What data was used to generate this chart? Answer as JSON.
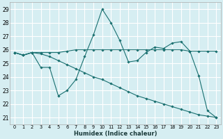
{
  "xlabel": "Humidex (Indice chaleur)",
  "bg_color": "#d6eef2",
  "grid_color": "#ffffff",
  "line_color": "#1a7070",
  "xlim": [
    -0.5,
    23.5
  ],
  "ylim": [
    20.5,
    29.5
  ],
  "yticks": [
    21,
    22,
    23,
    24,
    25,
    26,
    27,
    28,
    29
  ],
  "xticks": [
    0,
    1,
    2,
    3,
    4,
    5,
    6,
    7,
    8,
    9,
    10,
    11,
    12,
    13,
    14,
    15,
    16,
    17,
    18,
    19,
    20,
    21,
    22,
    23
  ],
  "line1_x": [
    0,
    1,
    2,
    3,
    4,
    5,
    6,
    7,
    8,
    9,
    10,
    11,
    12,
    13,
    14,
    15,
    16,
    17,
    18,
    19,
    20,
    21,
    22,
    23
  ],
  "line1_y": [
    25.8,
    25.6,
    25.8,
    25.8,
    25.8,
    25.8,
    25.9,
    26.0,
    26.0,
    26.0,
    26.0,
    26.0,
    26.0,
    26.0,
    26.0,
    26.0,
    26.0,
    26.0,
    26.0,
    26.0,
    25.9,
    25.9,
    25.9,
    25.9
  ],
  "line2_x": [
    0,
    1,
    2,
    3,
    4,
    5,
    6,
    7,
    8,
    9,
    10,
    11,
    12,
    13,
    14,
    15,
    16,
    17,
    18,
    19,
    20,
    21,
    22,
    23
  ],
  "line2_y": [
    25.8,
    25.6,
    25.8,
    24.7,
    24.7,
    22.6,
    23.0,
    23.8,
    25.5,
    27.1,
    29.0,
    28.0,
    26.7,
    25.1,
    25.2,
    25.8,
    26.2,
    26.1,
    26.5,
    26.6,
    25.9,
    24.1,
    21.5,
    21.0
  ],
  "line3_x": [
    0,
    1,
    2,
    3,
    4,
    5,
    6,
    7,
    8,
    9,
    10,
    11,
    12,
    13,
    14,
    15,
    16,
    17,
    18,
    19,
    20,
    21,
    22,
    23
  ],
  "line3_y": [
    25.8,
    25.6,
    25.8,
    25.7,
    25.5,
    25.2,
    24.9,
    24.6,
    24.3,
    24.0,
    23.8,
    23.5,
    23.2,
    22.9,
    22.6,
    22.4,
    22.2,
    22.0,
    21.8,
    21.6,
    21.4,
    21.2,
    21.1,
    21.0
  ]
}
